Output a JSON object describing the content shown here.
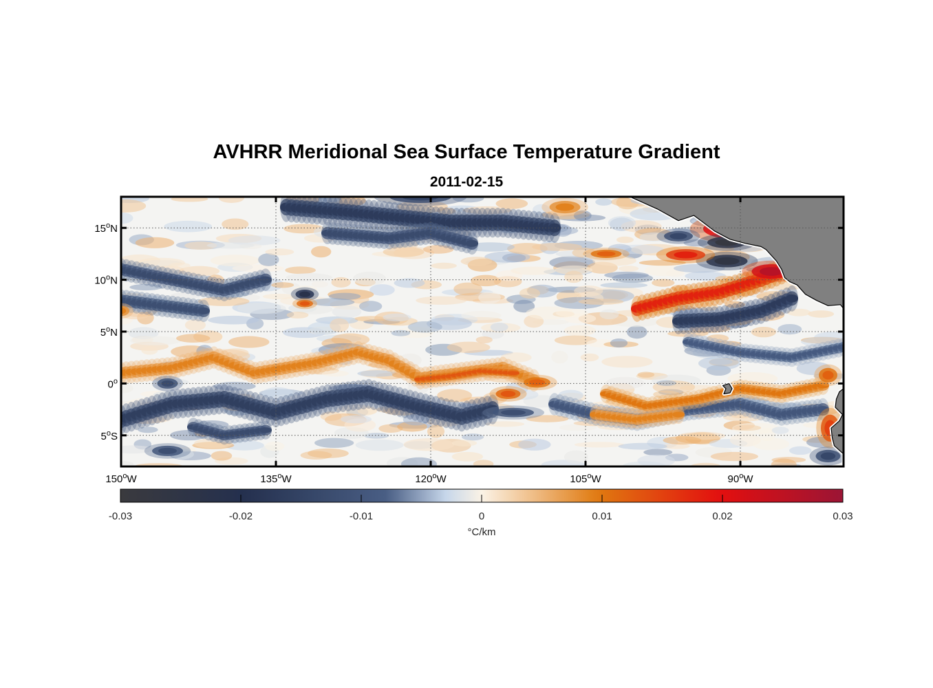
{
  "title": "AVHRR Meridional Sea Surface Temperature Gradient",
  "subtitle": "2011-02-15",
  "map": {
    "lon_range": [
      -150,
      -80
    ],
    "lat_range": [
      -8,
      18
    ],
    "land_color": "#808080",
    "coastline_color": "#000000",
    "grid_style": "dotted",
    "lon_ticks": [
      {
        "value": -150,
        "deg": "150",
        "hemi": "W"
      },
      {
        "value": -135,
        "deg": "135",
        "hemi": "W"
      },
      {
        "value": -120,
        "deg": "120",
        "hemi": "W"
      },
      {
        "value": -105,
        "deg": "105",
        "hemi": "W"
      },
      {
        "value": -90,
        "deg": "90",
        "hemi": "W"
      }
    ],
    "lat_ticks": [
      {
        "value": 15,
        "deg": "15",
        "hemi": "N"
      },
      {
        "value": 10,
        "deg": "10",
        "hemi": "N"
      },
      {
        "value": 5,
        "deg": "5",
        "hemi": "N"
      },
      {
        "value": 0,
        "deg": "0",
        "hemi": ""
      },
      {
        "value": -5,
        "deg": "5",
        "hemi": "S"
      }
    ]
  },
  "colorbar": {
    "range": [
      -0.03,
      0.03
    ],
    "ticks": [
      {
        "value": -0.03,
        "label": "-0.03"
      },
      {
        "value": -0.02,
        "label": "-0.02"
      },
      {
        "value": -0.01,
        "label": "-0.01"
      },
      {
        "value": 0,
        "label": "0"
      },
      {
        "value": 0.01,
        "label": "0.01"
      },
      {
        "value": 0.02,
        "label": "0.02"
      },
      {
        "value": 0.03,
        "label": "0.03"
      }
    ],
    "unit": "°C/km",
    "colors": [
      "#3a3a3e",
      "#24304e",
      "#4a5f85",
      "#c6d6ea",
      "#fbf3e6",
      "#e07a10",
      "#e30f0f",
      "#9b1535"
    ]
  },
  "chart_data": {
    "type": "heatmap",
    "variable": "meridional SST gradient",
    "features": [
      {
        "kind": "band",
        "v": 0.009,
        "lat_sigma": 0.6,
        "pts": [
          [
            -150,
            1.0
          ],
          [
            -145,
            1.5
          ],
          [
            -141,
            2.5
          ],
          [
            -137,
            1.0
          ],
          [
            -131,
            2.0
          ],
          [
            -127,
            3.0
          ],
          [
            -124,
            2.2
          ],
          [
            -121,
            0.5
          ],
          [
            -117,
            1.0
          ],
          [
            -113,
            1.5
          ],
          [
            -110,
            0.3
          ]
        ]
      },
      {
        "kind": "band",
        "v": 0.013,
        "lat_sigma": 0.35,
        "pts": [
          [
            -121,
            0.4
          ],
          [
            -118,
            0.7
          ],
          [
            -115,
            1.2
          ],
          [
            -112,
            1.0
          ]
        ]
      },
      {
        "kind": "band",
        "v": -0.016,
        "lat_sigma": 0.8,
        "pts": [
          [
            -150,
            -3.5
          ],
          [
            -145,
            -2.0
          ],
          [
            -140,
            -1.5
          ],
          [
            -135,
            -2.8
          ],
          [
            -130,
            -1.5
          ],
          [
            -126,
            -1.0
          ],
          [
            -121,
            -2.3
          ],
          [
            -117,
            -3.2
          ],
          [
            -114,
            -2.5
          ]
        ]
      },
      {
        "kind": "band",
        "v": -0.013,
        "lat_sigma": 0.5,
        "pts": [
          [
            -143,
            -4.2
          ],
          [
            -140,
            -5.0
          ],
          [
            -136,
            -4.5
          ]
        ]
      },
      {
        "kind": "band",
        "v": -0.017,
        "lat_sigma": 0.7,
        "pts": [
          [
            -96,
            6.0
          ],
          [
            -92,
            6.2
          ],
          [
            -88,
            7.0
          ],
          [
            -85,
            8.2
          ]
        ]
      },
      {
        "kind": "band",
        "v": 0.018,
        "lat_sigma": 0.7,
        "pts": [
          [
            -100,
            7.2
          ],
          [
            -96,
            8.2
          ],
          [
            -92,
            8.8
          ],
          [
            -88,
            10.0
          ],
          [
            -85,
            11.2
          ]
        ]
      },
      {
        "kind": "band",
        "v": -0.013,
        "lat_sigma": 0.6,
        "pts": [
          [
            -150,
            11.0
          ],
          [
            -145,
            10.0
          ],
          [
            -140,
            9.0
          ],
          [
            -136,
            10.0
          ]
        ]
      },
      {
        "kind": "band",
        "v": -0.012,
        "lat_sigma": 0.6,
        "pts": [
          [
            -150,
            8.0
          ],
          [
            -146,
            7.5
          ],
          [
            -142,
            7.0
          ]
        ]
      },
      {
        "kind": "band",
        "v": -0.017,
        "lat_sigma": 0.8,
        "pts": [
          [
            -134,
            17.0
          ],
          [
            -128,
            16.5
          ],
          [
            -123,
            16.0
          ],
          [
            -118,
            15.5
          ],
          [
            -113,
            15.5
          ],
          [
            -108,
            15.0
          ]
        ]
      },
      {
        "kind": "band",
        "v": -0.013,
        "lat_sigma": 0.6,
        "pts": [
          [
            -130,
            14.5
          ],
          [
            -124,
            14.0
          ],
          [
            -120,
            14.5
          ],
          [
            -116,
            13.5
          ]
        ]
      },
      {
        "kind": "band",
        "v": -0.01,
        "lat_sigma": 0.6,
        "pts": [
          [
            -108,
            -2.0
          ],
          [
            -104,
            -3.0
          ],
          [
            -100,
            -3.5
          ],
          [
            -95,
            -2.5
          ],
          [
            -90,
            -2.0
          ],
          [
            -86,
            -3.0
          ],
          [
            -82,
            -2.5
          ]
        ]
      },
      {
        "kind": "band",
        "v": 0.01,
        "lat_sigma": 0.5,
        "pts": [
          [
            -103,
            -1.0
          ],
          [
            -99,
            -2.2
          ],
          [
            -94,
            -1.5
          ],
          [
            -90,
            -0.5
          ],
          [
            -86,
            -1.0
          ],
          [
            -82,
            -0.2
          ]
        ]
      },
      {
        "kind": "band",
        "v": 0.009,
        "lat_sigma": 0.5,
        "pts": [
          [
            -104,
            -3.0
          ],
          [
            -100,
            -3.5
          ],
          [
            -96,
            -3.0
          ]
        ]
      },
      {
        "kind": "band",
        "v": -0.009,
        "lat_sigma": 0.5,
        "pts": [
          [
            -95,
            4.0
          ],
          [
            -90,
            3.0
          ],
          [
            -85,
            2.5
          ],
          [
            -80,
            3.5
          ]
        ]
      },
      {
        "kind": "blob",
        "v": 0.024,
        "lon": -91.0,
        "lat": 14.9,
        "rlon": 2.6,
        "rlat": 0.9
      },
      {
        "kind": "blob",
        "v": -0.028,
        "lon": -91.3,
        "lat": 13.6,
        "rlon": 1.9,
        "rlat": 0.55
      },
      {
        "kind": "blob",
        "v": -0.026,
        "lon": -91.3,
        "lat": 11.8,
        "rlon": 2.0,
        "rlat": 0.6
      },
      {
        "kind": "blob",
        "v": 0.018,
        "lon": -95.3,
        "lat": 12.4,
        "rlon": 1.9,
        "rlat": 0.55
      },
      {
        "kind": "blob",
        "v": -0.014,
        "lon": -96.0,
        "lat": 14.2,
        "rlon": 1.4,
        "rlat": 0.5
      },
      {
        "kind": "blob",
        "v": 0.026,
        "lon": -87.0,
        "lat": 10.8,
        "rlon": 1.9,
        "rlat": 0.7
      },
      {
        "kind": "blob",
        "v": -0.022,
        "lon": -132.2,
        "lat": 8.6,
        "rlon": 0.9,
        "rlat": 0.45
      },
      {
        "kind": "blob",
        "v": 0.013,
        "lon": -132.2,
        "lat": 7.7,
        "rlon": 0.8,
        "rlat": 0.35
      },
      {
        "kind": "blob",
        "v": 0.012,
        "lon": -109.7,
        "lat": 0.1,
        "rlon": 1.3,
        "rlat": 0.5
      },
      {
        "kind": "blob",
        "v": 0.013,
        "lon": -112.5,
        "lat": -1.0,
        "rlon": 1.2,
        "rlat": 0.5
      },
      {
        "kind": "blob",
        "v": -0.012,
        "lon": -112.0,
        "lat": -2.8,
        "rlon": 2.0,
        "rlat": 0.45
      },
      {
        "kind": "blob",
        "v": 0.012,
        "lon": -103.0,
        "lat": 12.5,
        "rlon": 1.5,
        "rlat": 0.4
      },
      {
        "kind": "blob",
        "v": 0.015,
        "lon": -81.3,
        "lat": -4.3,
        "rlon": 0.9,
        "rlat": 1.3
      },
      {
        "kind": "blob",
        "v": 0.012,
        "lon": -81.5,
        "lat": 0.8,
        "rlon": 0.9,
        "rlat": 0.7
      },
      {
        "kind": "blob",
        "v": -0.014,
        "lon": -81.5,
        "lat": -7.0,
        "rlon": 1.2,
        "rlat": 0.6
      },
      {
        "kind": "blob",
        "v": -0.012,
        "lon": -145.5,
        "lat": -6.5,
        "rlon": 1.5,
        "rlat": 0.5
      },
      {
        "kind": "blob",
        "v": -0.013,
        "lon": -145.5,
        "lat": 0.0,
        "rlon": 1.0,
        "rlat": 0.5
      },
      {
        "kind": "blob",
        "v": 0.009,
        "lon": -150.0,
        "lat": 7.0,
        "rlon": 0.8,
        "rlat": 0.5
      },
      {
        "kind": "blob",
        "v": -0.014,
        "lon": -121.0,
        "lat": 18.0,
        "rlon": 3.0,
        "rlat": 0.6
      },
      {
        "kind": "blob",
        "v": 0.009,
        "lon": -107.0,
        "lat": 17.0,
        "rlon": 1.5,
        "rlat": 0.6
      }
    ],
    "land": [
      {
        "name": "mexico-central-america",
        "pts": [
          [
            -101.8,
            18.5
          ],
          [
            -98,
            16.8
          ],
          [
            -96,
            15.7
          ],
          [
            -94.5,
            16.2
          ],
          [
            -92.5,
            14.7
          ],
          [
            -91,
            13.9
          ],
          [
            -89.5,
            13.5
          ],
          [
            -88.0,
            13.2
          ],
          [
            -87.5,
            12.9
          ],
          [
            -86.5,
            11.8
          ],
          [
            -86.0,
            11.0
          ],
          [
            -85.7,
            10.2
          ],
          [
            -85.2,
            9.8
          ],
          [
            -84.5,
            9.5
          ],
          [
            -83.7,
            8.6
          ],
          [
            -82.6,
            8.0
          ],
          [
            -81.5,
            7.5
          ],
          [
            -80.3,
            7.6
          ],
          [
            -80.0,
            7.2
          ],
          [
            -80,
            18.5
          ]
        ]
      },
      {
        "name": "ecuador-peru",
        "pts": [
          [
            -80,
            -0.5
          ],
          [
            -80.4,
            -0.8
          ],
          [
            -80.7,
            -1.5
          ],
          [
            -80.8,
            -2.3
          ],
          [
            -80.1,
            -3.0
          ],
          [
            -80.4,
            -3.6
          ],
          [
            -81.2,
            -4.3
          ],
          [
            -81.1,
            -5.2
          ],
          [
            -80.9,
            -6.0
          ],
          [
            -80.0,
            -6.8
          ],
          [
            -80,
            -8.5
          ]
        ]
      },
      {
        "name": "galapagos",
        "pts": [
          [
            -91.7,
            -0.2
          ],
          [
            -91.1,
            0.0
          ],
          [
            -90.8,
            -0.5
          ],
          [
            -91.0,
            -0.9
          ],
          [
            -91.6,
            -1.0
          ],
          [
            -91.4,
            -0.5
          ]
        ]
      }
    ]
  }
}
